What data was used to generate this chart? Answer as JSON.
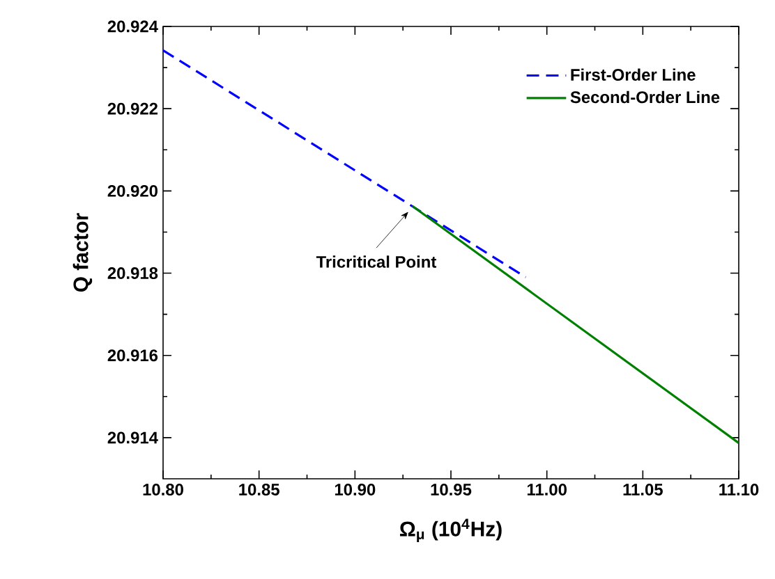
{
  "chart_data": {
    "type": "line",
    "xlabel": "Ω$_{μ}$ (10$^{4}$Hz)",
    "ylabel": "Q factor",
    "xlim": [
      10.8,
      11.1
    ],
    "xticks": [
      {
        "value": 10.8,
        "label": "10.80"
      },
      {
        "value": 10.85,
        "label": "10.85"
      },
      {
        "value": 10.9,
        "label": "10.90"
      },
      {
        "value": 10.95,
        "label": "10.95"
      },
      {
        "value": 11.0,
        "label": "11.00"
      },
      {
        "value": 11.05,
        "label": "11.05"
      },
      {
        "value": 11.1,
        "label": "11.10"
      }
    ],
    "ylim": [
      20.913,
      20.924
    ],
    "yticks": [
      {
        "value": 20.914,
        "label": "20.914"
      },
      {
        "value": 20.916,
        "label": "20.916"
      },
      {
        "value": 20.918,
        "label": "20.918"
      },
      {
        "value": 20.92,
        "label": "20.920"
      },
      {
        "value": 20.922,
        "label": "20.922"
      },
      {
        "value": 20.924,
        "label": "20.924"
      }
    ],
    "series": [
      {
        "name": "First-Order Line",
        "color": "#0000ff",
        "line_style": "dashed",
        "x": [
          10.8,
          10.989
        ],
        "values": [
          20.92342,
          20.9179
        ]
      },
      {
        "name": "Second-Order Line",
        "color": "#008000",
        "line_style": "solid",
        "x": [
          10.93,
          11.1
        ],
        "values": [
          20.91963,
          20.91387
        ]
      }
    ],
    "annotations": [
      {
        "text": "Tricritical Point",
        "x": 10.93,
        "y": 20.91963
      }
    ],
    "legend": "top right",
    "grid": false,
    "marker": "none"
  }
}
